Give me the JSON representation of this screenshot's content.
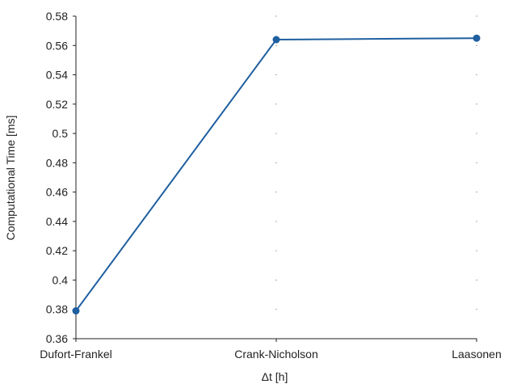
{
  "chart_data": {
    "type": "line",
    "title": "",
    "xlabel": "Δt [h]",
    "ylabel": "Computational Time [ms]",
    "categories": [
      "Dufort-Frankel",
      "Crank-Nicholson",
      "Laasonen"
    ],
    "series": [
      {
        "name": "",
        "values": [
          0.379,
          0.564,
          0.565
        ],
        "color": "#1f5fa0"
      }
    ],
    "ylim": [
      0.36,
      0.58
    ],
    "yticks": [
      0.36,
      0.38,
      0.4,
      0.42,
      0.44,
      0.46,
      0.48,
      0.5,
      0.52,
      0.54,
      0.56,
      0.58
    ],
    "ytick_labels": [
      "0.36",
      "0.38",
      "0.4",
      "0.42",
      "0.44",
      "0.46",
      "0.48",
      "0.5",
      "0.52",
      "0.54",
      "0.56",
      "0.58"
    ],
    "grid": "dotted markers at tick positions",
    "legend": "none"
  }
}
